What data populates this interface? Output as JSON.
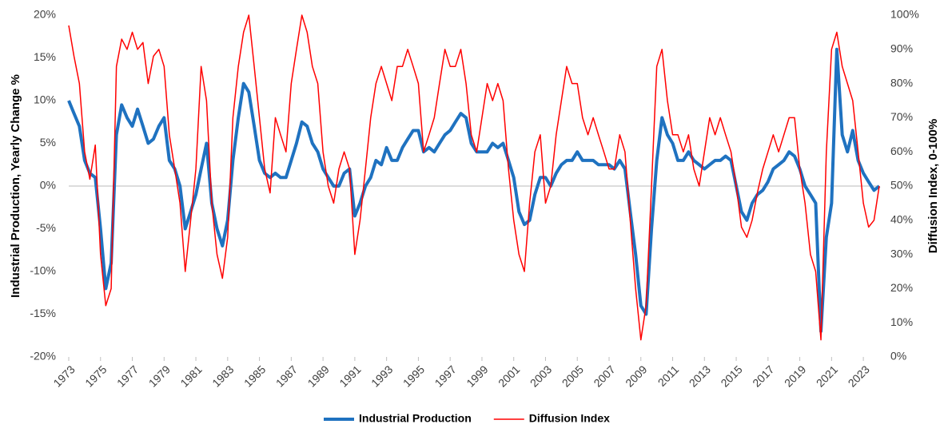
{
  "chart_data": {
    "type": "line",
    "y_label": "Industrial Production, Yearly Change %",
    "y2_label": "Diffusion Index, 0-100%",
    "x": [
      1973,
      1973.33,
      1973.67,
      1974,
      1974.33,
      1974.67,
      1975,
      1975.33,
      1975.67,
      1976,
      1976.33,
      1976.67,
      1977,
      1977.33,
      1977.67,
      1978,
      1978.33,
      1978.67,
      1979,
      1979.33,
      1979.67,
      1980,
      1980.33,
      1980.67,
      1981,
      1981.33,
      1981.67,
      1982,
      1982.33,
      1982.67,
      1983,
      1983.33,
      1983.67,
      1984,
      1984.33,
      1984.67,
      1985,
      1985.33,
      1985.67,
      1986,
      1986.33,
      1986.67,
      1987,
      1987.33,
      1987.67,
      1988,
      1988.33,
      1988.67,
      1989,
      1989.33,
      1989.67,
      1990,
      1990.33,
      1990.67,
      1991,
      1991.33,
      1991.67,
      1992,
      1992.33,
      1992.67,
      1993,
      1993.33,
      1993.67,
      1994,
      1994.33,
      1994.67,
      1995,
      1995.33,
      1995.67,
      1996,
      1996.33,
      1996.67,
      1997,
      1997.33,
      1997.67,
      1998,
      1998.33,
      1998.67,
      1999,
      1999.33,
      1999.67,
      2000,
      2000.33,
      2000.67,
      2001,
      2001.33,
      2001.67,
      2002,
      2002.33,
      2002.67,
      2003,
      2003.33,
      2003.67,
      2004,
      2004.33,
      2004.67,
      2005,
      2005.33,
      2005.67,
      2006,
      2006.33,
      2006.67,
      2007,
      2007.33,
      2007.67,
      2008,
      2008.33,
      2008.67,
      2009,
      2009.33,
      2009.67,
      2010,
      2010.33,
      2010.67,
      2011,
      2011.33,
      2011.67,
      2012,
      2012.33,
      2012.67,
      2013,
      2013.33,
      2013.67,
      2014,
      2014.33,
      2014.67,
      2015,
      2015.33,
      2015.67,
      2016,
      2016.33,
      2016.67,
      2017,
      2017.33,
      2017.67,
      2018,
      2018.33,
      2018.67,
      2019,
      2019.33,
      2019.67,
      2020,
      2020.33,
      2020.67,
      2021,
      2021.33,
      2021.67,
      2022,
      2022.33,
      2022.67,
      2023,
      2023.33,
      2023.67,
      2024
    ],
    "series": [
      {
        "name": "Industrial Production",
        "color": "#1f72c0",
        "axis": "y",
        "width": 4,
        "values": [
          10,
          8.5,
          7,
          3,
          1.5,
          1,
          -5,
          -12,
          -9,
          6,
          9.5,
          8,
          7,
          9,
          7,
          5,
          5.5,
          7,
          8,
          3,
          2,
          0,
          -5,
          -3,
          -1,
          2,
          5,
          -2,
          -5,
          -7,
          -4,
          3,
          8,
          12,
          11,
          7,
          3,
          1.5,
          1,
          1.5,
          1,
          1,
          3,
          5,
          7.5,
          7,
          5,
          4,
          2,
          1,
          0,
          0,
          1.5,
          2,
          -3.5,
          -2,
          0,
          1,
          3,
          2.5,
          4.5,
          3,
          3,
          4.5,
          5.5,
          6.5,
          6.5,
          4,
          4.5,
          4,
          5,
          6,
          6.5,
          7.5,
          8.5,
          8,
          5,
          4,
          4,
          4,
          5,
          4.5,
          5,
          3,
          1,
          -3,
          -4.5,
          -4,
          -1,
          1,
          1,
          0,
          1.5,
          2.5,
          3,
          3,
          4,
          3,
          3,
          3,
          2.5,
          2.5,
          2.5,
          2,
          3,
          2,
          -3,
          -8,
          -14,
          -15,
          -5,
          3,
          8,
          6,
          5,
          3,
          3,
          4,
          3,
          2.5,
          2,
          2.5,
          3,
          3,
          3.5,
          3,
          0,
          -3,
          -4,
          -2,
          -1,
          -0.5,
          0.5,
          2,
          2.5,
          3,
          4,
          3.5,
          2,
          0,
          -1,
          -2,
          -17,
          -6,
          -2,
          16,
          6,
          4,
          6.5,
          3,
          1.5,
          0.5,
          -0.5,
          0
        ]
      },
      {
        "name": "Diffusion Index",
        "color": "#ff0000",
        "axis": "y2",
        "width": 1.5,
        "values": [
          97,
          88,
          80,
          60,
          52,
          62,
          30,
          15,
          20,
          85,
          93,
          90,
          95,
          90,
          92,
          80,
          88,
          90,
          85,
          65,
          55,
          45,
          25,
          40,
          55,
          85,
          75,
          45,
          30,
          23,
          35,
          70,
          85,
          95,
          100,
          85,
          70,
          55,
          48,
          70,
          65,
          60,
          80,
          90,
          100,
          95,
          85,
          80,
          60,
          50,
          45,
          55,
          60,
          55,
          30,
          40,
          55,
          70,
          80,
          85,
          80,
          75,
          85,
          85,
          90,
          85,
          80,
          60,
          65,
          70,
          80,
          90,
          85,
          85,
          90,
          80,
          65,
          60,
          70,
          80,
          75,
          80,
          75,
          55,
          40,
          30,
          25,
          45,
          60,
          65,
          45,
          50,
          65,
          75,
          85,
          80,
          80,
          70,
          65,
          70,
          65,
          60,
          55,
          55,
          65,
          60,
          40,
          20,
          5,
          15,
          50,
          85,
          90,
          75,
          65,
          65,
          60,
          65,
          55,
          50,
          60,
          70,
          65,
          70,
          65,
          60,
          50,
          38,
          35,
          40,
          48,
          55,
          60,
          65,
          60,
          65,
          70,
          70,
          55,
          45,
          30,
          25,
          5,
          60,
          90,
          95,
          85,
          80,
          75,
          60,
          45,
          38,
          40,
          50
        ]
      }
    ],
    "xlim": [
      1973,
      2024
    ],
    "xticks": [
      1973,
      1975,
      1977,
      1979,
      1981,
      1983,
      1985,
      1987,
      1989,
      1991,
      1993,
      1995,
      1997,
      1999,
      2001,
      2003,
      2005,
      2007,
      2009,
      2011,
      2013,
      2015,
      2017,
      2019,
      2021,
      2023
    ],
    "ylim": [
      -20,
      20
    ],
    "yticks": [
      {
        "value": -20,
        "label": "-20%"
      },
      {
        "value": -15,
        "label": "-15%"
      },
      {
        "value": -10,
        "label": "-10%"
      },
      {
        "value": -5,
        "label": "-5%"
      },
      {
        "value": 0,
        "label": "0%"
      },
      {
        "value": 5,
        "label": "5%"
      },
      {
        "value": 10,
        "label": "10%"
      },
      {
        "value": 15,
        "label": "15%"
      },
      {
        "value": 20,
        "label": "20%"
      }
    ],
    "y2lim": [
      0,
      100
    ],
    "y2ticks": [
      {
        "value": 0,
        "label": "0%"
      },
      {
        "value": 10,
        "label": "10%"
      },
      {
        "value": 20,
        "label": "20%"
      },
      {
        "value": 30,
        "label": "30%"
      },
      {
        "value": 40,
        "label": "40%"
      },
      {
        "value": 50,
        "label": "50%"
      },
      {
        "value": 60,
        "label": "60%"
      },
      {
        "value": 70,
        "label": "70%"
      },
      {
        "value": 80,
        "label": "80%"
      },
      {
        "value": 90,
        "label": "90%"
      },
      {
        "value": 100,
        "label": "100%"
      }
    ],
    "legend": "bottom"
  }
}
